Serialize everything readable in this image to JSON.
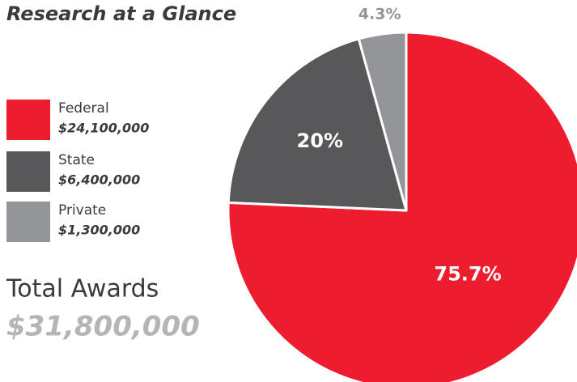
{
  "chart_data": {
    "type": "pie",
    "title": "Research at a Glance",
    "categories": [
      "Federal",
      "State",
      "Private"
    ],
    "values": [
      75.7,
      20,
      4.3
    ],
    "value_labels": [
      "75.7%",
      "20%",
      "4.3%"
    ],
    "amount_labels": [
      "$24,100,000",
      "$6,400,000",
      "$1,300,000"
    ],
    "colors": [
      "#ed1c2e",
      "#58585a",
      "#939598"
    ],
    "total_title": "Total Awards",
    "total_label": "$31,800,000"
  }
}
